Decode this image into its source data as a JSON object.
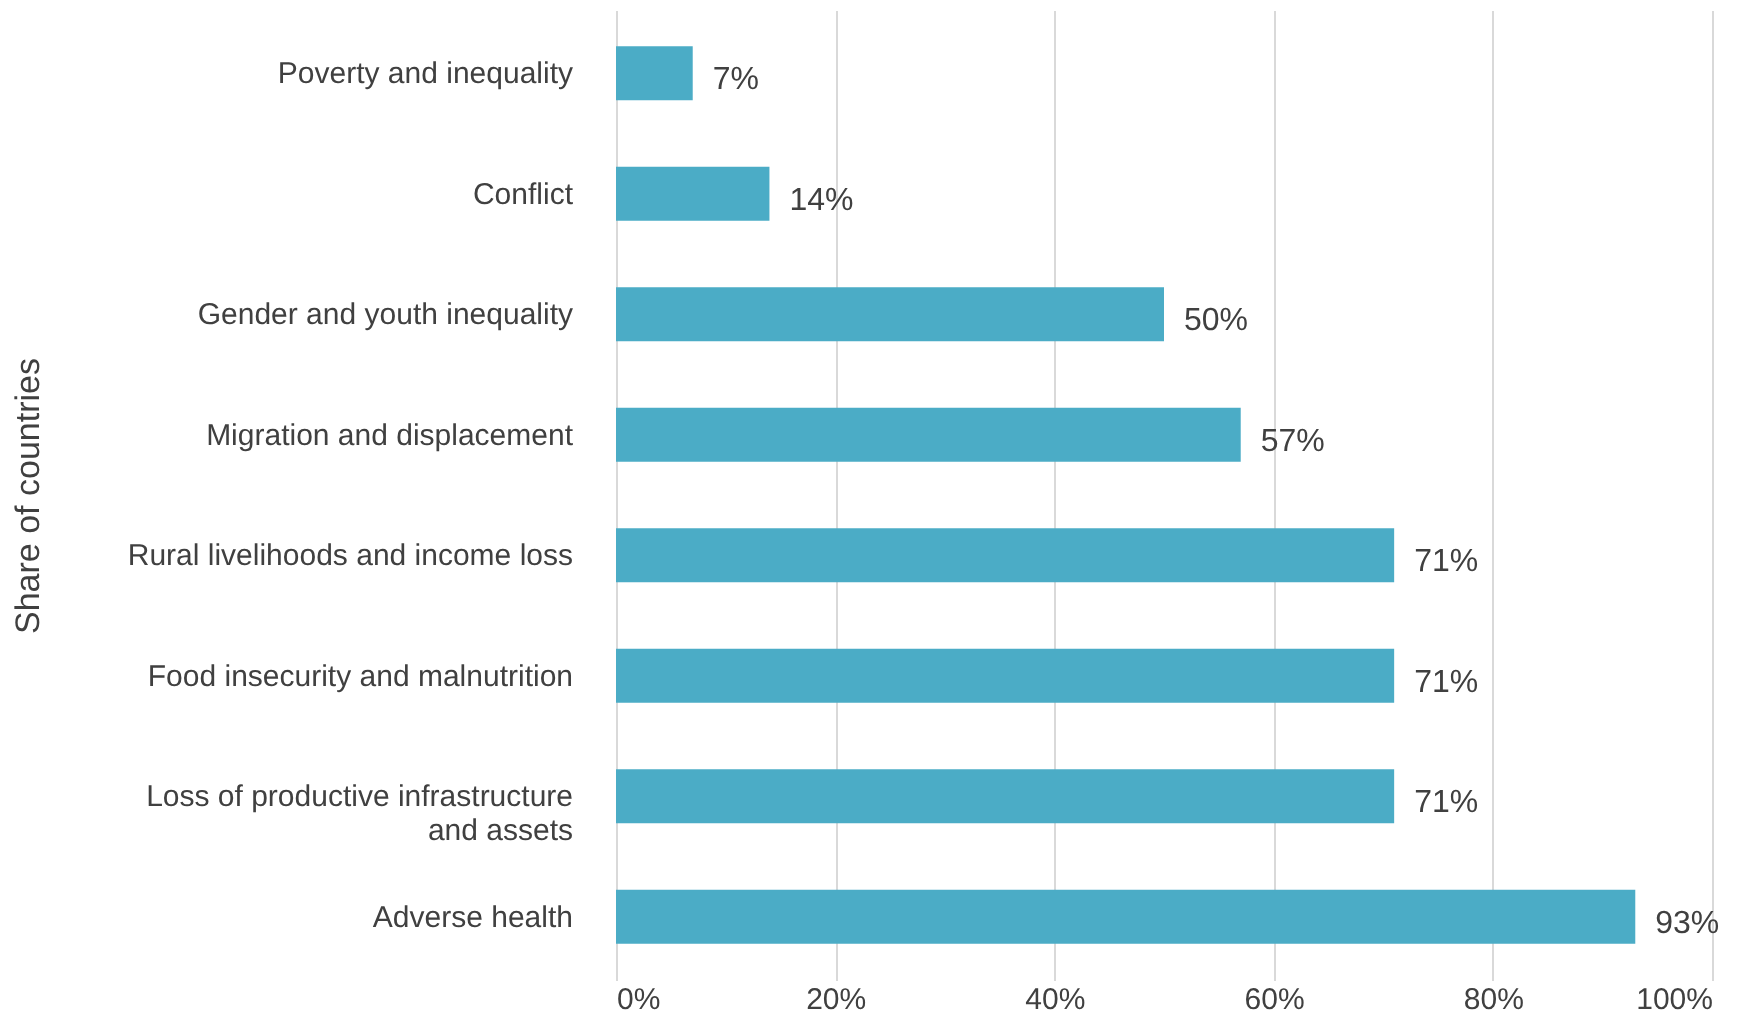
{
  "chart_data": {
    "type": "bar",
    "orientation": "horizontal",
    "ylabel": "Share of countries",
    "categories": [
      "Poverty and inequality",
      "Conflict",
      "Gender and youth inequality",
      "Migration and displacement",
      "Rural livelihoods and income loss",
      "Food insecurity and malnutrition",
      "Loss of productive infrastructure and assets",
      "Adverse health"
    ],
    "values": [
      7,
      14,
      50,
      57,
      71,
      71,
      71,
      93
    ],
    "value_labels": [
      "7%",
      "14%",
      "50%",
      "57%",
      "71%",
      "71%",
      "71%",
      "93%"
    ],
    "color": "#4bacc6",
    "xlim": [
      0,
      100
    ],
    "xticks": [
      {
        "value": 0,
        "label": "0%"
      },
      {
        "value": 20,
        "label": "20%"
      },
      {
        "value": 40,
        "label": "40%"
      },
      {
        "value": 60,
        "label": "60%"
      },
      {
        "value": 80,
        "label": "80%"
      },
      {
        "value": 100,
        "label": "100%"
      }
    ],
    "grid": "x"
  }
}
